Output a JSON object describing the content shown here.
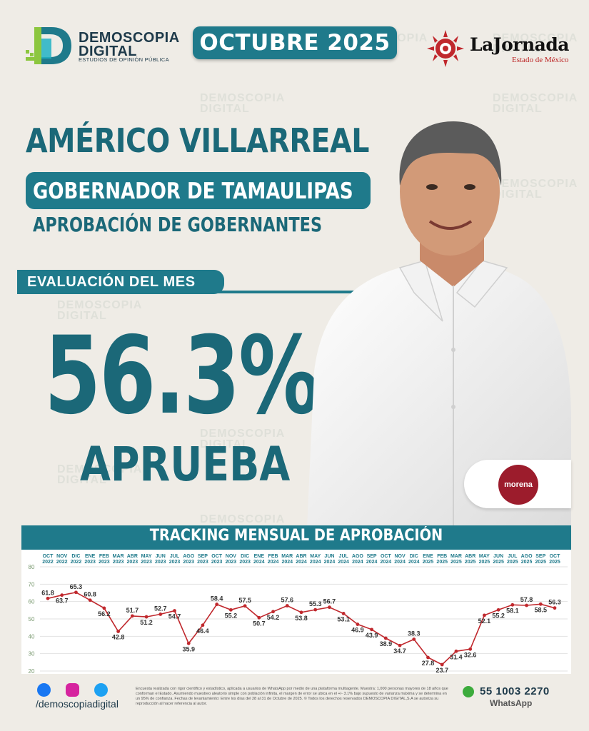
{
  "header": {
    "brand_line1": "DEMOSCOPIA",
    "brand_line2": "DIGITAL",
    "brand_tagline": "ESTUDIOS DE OPINIÓN PÚBLICA",
    "month_label": "OCTUBRE 2025",
    "partner_name": "LaJornada",
    "partner_sub": "Estado de México"
  },
  "headline": {
    "name": "AMÉRICO VILLARREAL",
    "role": "GOBERNADOR DE TAMAULIPAS",
    "subtitle": "APROBACIÓN DE GOBERNANTES",
    "eval_label": "EVALUACIÓN DEL MES",
    "approval_value": "56.3%",
    "approval_word": "APRUEBA",
    "party": "morena"
  },
  "watermark": {
    "line1": "DEMOSCOPIA",
    "line2": "DIGITAL"
  },
  "chart_data": {
    "type": "line",
    "title": "TRACKING MENSUAL DE APROBACIÓN",
    "categories": [
      [
        "OCT",
        "2022"
      ],
      [
        "NOV",
        "2022"
      ],
      [
        "DIC",
        "2022"
      ],
      [
        "ENE",
        "2023"
      ],
      [
        "FEB",
        "2023"
      ],
      [
        "MAR",
        "2023"
      ],
      [
        "ABR",
        "2023"
      ],
      [
        "MAY",
        "2023"
      ],
      [
        "JUN",
        "2023"
      ],
      [
        "JUL",
        "2023"
      ],
      [
        "AGO",
        "2023"
      ],
      [
        "SEP",
        "2023"
      ],
      [
        "OCT",
        "2023"
      ],
      [
        "NOV",
        "2023"
      ],
      [
        "DIC",
        "2023"
      ],
      [
        "ENE",
        "2024"
      ],
      [
        "FEB",
        "2024"
      ],
      [
        "MAR",
        "2024"
      ],
      [
        "ABR",
        "2024"
      ],
      [
        "MAY",
        "2024"
      ],
      [
        "JUN",
        "2024"
      ],
      [
        "JUL",
        "2024"
      ],
      [
        "AGO",
        "2024"
      ],
      [
        "SEP",
        "2024"
      ],
      [
        "OCT",
        "2024"
      ],
      [
        "NOV",
        "2024"
      ],
      [
        "DIC",
        "2024"
      ],
      [
        "ENE",
        "2025"
      ],
      [
        "FEB",
        "2025"
      ],
      [
        "MAR",
        "2025"
      ],
      [
        "ABR",
        "2025"
      ],
      [
        "MAY",
        "2025"
      ],
      [
        "JUN",
        "2025"
      ],
      [
        "JUL",
        "2025"
      ],
      [
        "AGO",
        "2025"
      ],
      [
        "SEP",
        "2025"
      ],
      [
        "OCT",
        "2025"
      ]
    ],
    "values": [
      61.8,
      63.7,
      65.3,
      60.8,
      56.2,
      42.8,
      51.7,
      51.2,
      52.7,
      54.7,
      35.9,
      46.4,
      58.4,
      55.2,
      57.5,
      50.7,
      54.2,
      57.6,
      53.8,
      55.3,
      56.7,
      53.1,
      46.9,
      43.9,
      38.9,
      34.7,
      38.3,
      27.8,
      23.7,
      31.4,
      32.6,
      52.1,
      55.2,
      58.1,
      57.8,
      58.5,
      56.3
    ],
    "label_pos": [
      "a",
      "b",
      "a",
      "a",
      "b",
      "b",
      "a",
      "b",
      "a",
      "b",
      "b",
      "b",
      "a",
      "b",
      "a",
      "b",
      "b",
      "a",
      "b",
      "a",
      "a",
      "b",
      "b",
      "b",
      "b",
      "b",
      "a",
      "b",
      "b",
      "b",
      "b",
      "b",
      "b",
      "b",
      "a",
      "b",
      "a"
    ],
    "yticks": [
      20,
      30,
      40,
      50,
      60,
      70,
      80
    ],
    "ylim": [
      20,
      80
    ],
    "line_color": "#c0282d"
  },
  "footer": {
    "handle": "/demoscopiadigital",
    "disclaimer": "Encuesta realizada con rigor científico y estadístico, aplicada a usuarios de WhatsApp por medio de una plataforma multiagente. Muestra: 1,000 personas mayores de 18 años que conforman el Estado. Asumiendo muestreo aleatorio simple con población infinita, el margen de error se ubica en el +/- 3.1% bajo supuesto de varianza máxima y se determina en un 95% de confianza. Fechas de levantamiento: Entre los días del 28 al 31 de Octubre de 2025. © Todos los derechos reservados DEMOSCOPIA DIGITAL,S.A se autoriza su reproducción al hacer referencia al autor.",
    "phone": "55 1003 2270",
    "whatsapp_label": "WhatsApp"
  },
  "colors": {
    "teal": "#1f7a8b",
    "dark_teal": "#1b6878",
    "red": "#c0282d",
    "background": "#efece6"
  }
}
